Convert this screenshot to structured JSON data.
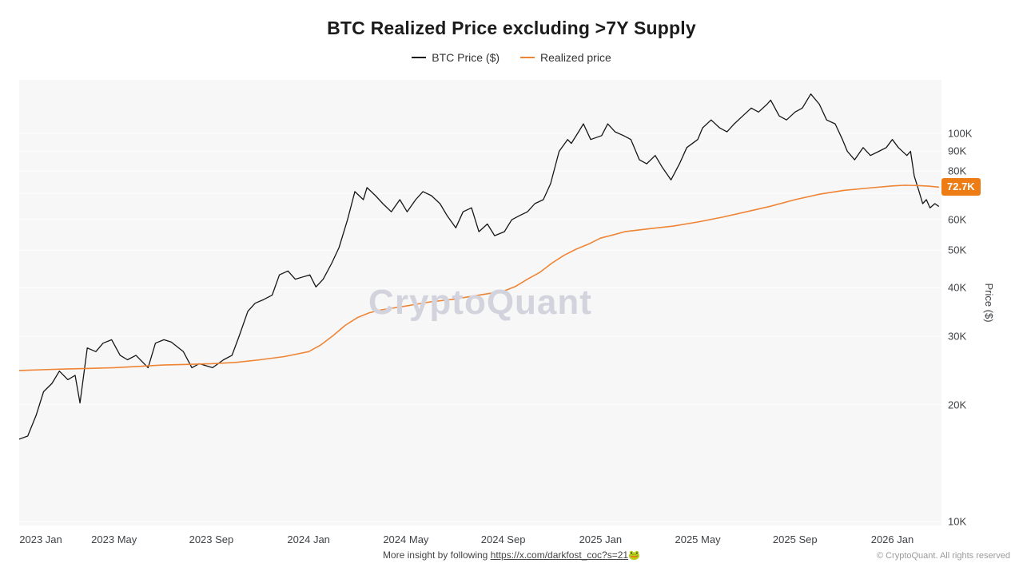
{
  "title": "BTC Realized Price excluding >7Y Supply",
  "legend": [
    {
      "label": "BTC Price ($)",
      "color": "#161616"
    },
    {
      "label": "Realized price",
      "color": "#ef8434"
    }
  ],
  "watermark": "CryptoQuant",
  "footer": {
    "center_prefix": "More insight by following ",
    "center_link": "https://x.com/darkfost_coc?s=21",
    "center_emoji": "🐸",
    "right": "© CryptoQuant. All rights reserved"
  },
  "chart_data": {
    "type": "line",
    "title": "BTC Realized Price excluding >7Y Supply",
    "values_unit": "USD thousands",
    "x_axis": {
      "unit": "months since 2023 Jan",
      "ticks": [
        {
          "t": 0,
          "label": "2023 Jan"
        },
        {
          "t": 4,
          "label": "2023 May"
        },
        {
          "t": 8,
          "label": "2023 Sep"
        },
        {
          "t": 12,
          "label": "2024 Jan"
        },
        {
          "t": 16,
          "label": "2024 May"
        },
        {
          "t": 20,
          "label": "2024 Sep"
        },
        {
          "t": 24,
          "label": "2025 Jan"
        },
        {
          "t": 28,
          "label": "2025 May"
        },
        {
          "t": 32,
          "label": "2025 Sep"
        },
        {
          "t": 36,
          "label": "2026 Jan"
        }
      ]
    },
    "y_axis": {
      "label": "Price ($)",
      "scale": "log",
      "ticks_k": [
        100,
        90,
        80,
        60,
        50,
        40,
        30,
        20,
        10
      ],
      "grid_k": [
        10,
        20,
        30,
        40,
        50,
        60,
        70,
        80,
        90,
        100
      ],
      "range_k": [
        9.8,
        137
      ]
    },
    "last_value_badge": {
      "text": "72.7K",
      "value_k": 72.7,
      "color": "#ee7c15"
    },
    "series": [
      {
        "name": "BTC Price ($)",
        "color": "#161616",
        "width": 1.3,
        "points": [
          [
            0.1,
            16.3
          ],
          [
            0.45,
            16.6
          ],
          [
            0.8,
            18.8
          ],
          [
            1.1,
            21.6
          ],
          [
            1.45,
            22.7
          ],
          [
            1.75,
            24.4
          ],
          [
            2.1,
            23.2
          ],
          [
            2.4,
            23.8
          ],
          [
            2.6,
            20.2
          ],
          [
            2.9,
            28.0
          ],
          [
            3.25,
            27.4
          ],
          [
            3.55,
            28.8
          ],
          [
            3.9,
            29.4
          ],
          [
            4.25,
            26.8
          ],
          [
            4.55,
            26.1
          ],
          [
            4.9,
            26.8
          ],
          [
            5.4,
            24.9
          ],
          [
            5.7,
            28.8
          ],
          [
            6.05,
            29.4
          ],
          [
            6.35,
            29.0
          ],
          [
            6.85,
            27.4
          ],
          [
            7.2,
            24.9
          ],
          [
            7.5,
            25.5
          ],
          [
            8.05,
            24.9
          ],
          [
            8.5,
            26.1
          ],
          [
            8.85,
            26.8
          ],
          [
            9.15,
            30.1
          ],
          [
            9.5,
            34.8
          ],
          [
            9.8,
            36.5
          ],
          [
            10.15,
            37.3
          ],
          [
            10.5,
            38.3
          ],
          [
            10.8,
            43.2
          ],
          [
            11.15,
            44.2
          ],
          [
            11.45,
            42.1
          ],
          [
            12.05,
            43.2
          ],
          [
            12.3,
            40.2
          ],
          [
            12.6,
            42.1
          ],
          [
            12.95,
            46.3
          ],
          [
            13.25,
            50.8
          ],
          [
            13.6,
            59.9
          ],
          [
            13.9,
            70.8
          ],
          [
            14.25,
            67.5
          ],
          [
            14.4,
            72.5
          ],
          [
            14.75,
            69.1
          ],
          [
            15.05,
            65.9
          ],
          [
            15.4,
            62.8
          ],
          [
            15.75,
            67.5
          ],
          [
            16.05,
            62.8
          ],
          [
            16.4,
            67.5
          ],
          [
            16.7,
            70.8
          ],
          [
            17.05,
            69.1
          ],
          [
            17.4,
            65.9
          ],
          [
            17.7,
            61.3
          ],
          [
            18.05,
            57.1
          ],
          [
            18.35,
            62.8
          ],
          [
            18.7,
            64.3
          ],
          [
            19.0,
            55.8
          ],
          [
            19.35,
            58.4
          ],
          [
            19.65,
            54.5
          ],
          [
            20.05,
            55.8
          ],
          [
            20.35,
            59.9
          ],
          [
            20.65,
            61.3
          ],
          [
            21.0,
            62.8
          ],
          [
            21.3,
            65.9
          ],
          [
            21.65,
            67.5
          ],
          [
            21.95,
            74.2
          ],
          [
            22.3,
            89.9
          ],
          [
            22.65,
            96.4
          ],
          [
            22.8,
            94.2
          ],
          [
            23.1,
            100.9
          ],
          [
            23.3,
            105.8
          ],
          [
            23.6,
            96.4
          ],
          [
            24.05,
            98.7
          ],
          [
            24.3,
            105.8
          ],
          [
            24.6,
            100.9
          ],
          [
            24.95,
            98.7
          ],
          [
            25.25,
            96.4
          ],
          [
            25.6,
            85.5
          ],
          [
            25.9,
            83.5
          ],
          [
            26.25,
            87.7
          ],
          [
            26.55,
            81.6
          ],
          [
            26.9,
            75.9
          ],
          [
            27.25,
            83.5
          ],
          [
            27.55,
            91.9
          ],
          [
            28.0,
            96.4
          ],
          [
            28.2,
            103.3
          ],
          [
            28.55,
            108.3
          ],
          [
            28.9,
            103.3
          ],
          [
            29.2,
            100.9
          ],
          [
            29.5,
            105.8
          ],
          [
            29.85,
            110.9
          ],
          [
            30.2,
            116.2
          ],
          [
            30.5,
            113.5
          ],
          [
            30.85,
            118.9
          ],
          [
            31.0,
            121.8
          ],
          [
            31.35,
            110.9
          ],
          [
            31.65,
            108.3
          ],
          [
            32.0,
            113.5
          ],
          [
            32.3,
            116.2
          ],
          [
            32.65,
            126.3
          ],
          [
            33.0,
            118.9
          ],
          [
            33.3,
            108.3
          ],
          [
            33.65,
            105.8
          ],
          [
            33.95,
            96.4
          ],
          [
            34.15,
            89.9
          ],
          [
            34.45,
            85.5
          ],
          [
            34.8,
            91.9
          ],
          [
            35.1,
            87.7
          ],
          [
            35.45,
            89.9
          ],
          [
            35.75,
            91.9
          ],
          [
            36.0,
            96.4
          ],
          [
            36.25,
            91.9
          ],
          [
            36.6,
            87.7
          ],
          [
            36.75,
            89.9
          ],
          [
            36.9,
            77.7
          ],
          [
            37.1,
            70.8
          ],
          [
            37.25,
            65.9
          ],
          [
            37.4,
            67.5
          ],
          [
            37.55,
            64.3
          ],
          [
            37.75,
            65.9
          ],
          [
            37.9,
            64.9
          ]
        ]
      },
      {
        "name": "Realized price",
        "color": "#ef8434",
        "width": 1.6,
        "points": [
          [
            0.1,
            24.5
          ],
          [
            1,
            24.6
          ],
          [
            2,
            24.7
          ],
          [
            3,
            24.8
          ],
          [
            4,
            24.9
          ],
          [
            5,
            25.1
          ],
          [
            6,
            25.3
          ],
          [
            7,
            25.4
          ],
          [
            8,
            25.5
          ],
          [
            9,
            25.7
          ],
          [
            10,
            26.1
          ],
          [
            11,
            26.6
          ],
          [
            12,
            27.4
          ],
          [
            12.5,
            28.5
          ],
          [
            13,
            30.1
          ],
          [
            13.5,
            32.0
          ],
          [
            14,
            33.5
          ],
          [
            14.5,
            34.5
          ],
          [
            15,
            35.1
          ],
          [
            16,
            35.9
          ],
          [
            17,
            36.8
          ],
          [
            18,
            37.4
          ],
          [
            19,
            38.3
          ],
          [
            20,
            39.2
          ],
          [
            20.5,
            40.3
          ],
          [
            21,
            42.1
          ],
          [
            21.5,
            43.8
          ],
          [
            22,
            46.3
          ],
          [
            22.5,
            48.5
          ],
          [
            23,
            50.3
          ],
          [
            23.5,
            51.8
          ],
          [
            24,
            53.7
          ],
          [
            24.5,
            54.7
          ],
          [
            25,
            55.8
          ],
          [
            26,
            56.8
          ],
          [
            27,
            57.7
          ],
          [
            28,
            59.1
          ],
          [
            29,
            60.8
          ],
          [
            30,
            62.8
          ],
          [
            31,
            64.9
          ],
          [
            32,
            67.5
          ],
          [
            33,
            69.7
          ],
          [
            34,
            71.3
          ],
          [
            35,
            72.3
          ],
          [
            36,
            73.2
          ],
          [
            36.5,
            73.5
          ],
          [
            37,
            73.4
          ],
          [
            37.5,
            73.1
          ],
          [
            37.9,
            72.7
          ]
        ]
      }
    ]
  }
}
